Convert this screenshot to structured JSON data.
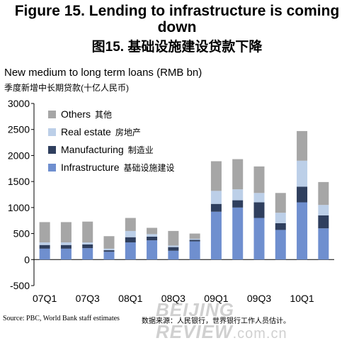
{
  "title_en": "Figure 15. Lending to infrastructure is coming down",
  "title_cn": "图15. 基础设施建设贷款下降",
  "unit_en": "New medium to long term loans (RMB bn)",
  "unit_cn": "季度新增中长期贷款(十亿人民币)",
  "source_en": "Source: PBC, World Bank staff estimates",
  "source_cn": "数据来源：人民银行，世界银行工作人员估计。",
  "watermark": {
    "main": "BEIJING REVIEW",
    "suffix": ".com.cn"
  },
  "colors": {
    "Infrastructure": "#6f8fcf",
    "Manufacturing": "#2f3f5e",
    "Real estate": "#bccfe8",
    "Others": "#a6a6a6"
  },
  "chart_data": {
    "type": "bar",
    "stacked": true,
    "categories": [
      "07Q1",
      "07Q2",
      "07Q3",
      "07Q4",
      "08Q1",
      "08Q2",
      "08Q3",
      "08Q4",
      "09Q1",
      "09Q2",
      "09Q3",
      "09Q4",
      "10Q1",
      "10Q2"
    ],
    "x_tick_labels": [
      "07Q1",
      "07Q3",
      "08Q1",
      "08Q3",
      "09Q1",
      "09Q3",
      "10Q1"
    ],
    "ylim": [
      -500,
      3000
    ],
    "yticks": [
      -500,
      0,
      500,
      1000,
      1500,
      2000,
      2500,
      3000
    ],
    "grid": false,
    "legend_position": "top-left",
    "series": [
      {
        "name": "Infrastructure",
        "name_cn": "基础设施建设",
        "values": [
          210,
          210,
          220,
          150,
          330,
          370,
          170,
          350,
          920,
          1000,
          800,
          570,
          1100,
          600
        ]
      },
      {
        "name": "Manufacturing",
        "name_cn": "制造业",
        "values": [
          70,
          70,
          70,
          30,
          100,
          70,
          70,
          30,
          150,
          140,
          300,
          130,
          300,
          250
        ]
      },
      {
        "name": "Real estate",
        "name_cn": "房地产",
        "values": [
          50,
          50,
          40,
          30,
          120,
          50,
          30,
          20,
          250,
          210,
          180,
          200,
          500,
          200
        ]
      },
      {
        "name": "Others",
        "name_cn": "其他",
        "values": [
          390,
          390,
          400,
          240,
          250,
          120,
          280,
          100,
          570,
          580,
          510,
          380,
          570,
          440
        ]
      }
    ]
  }
}
